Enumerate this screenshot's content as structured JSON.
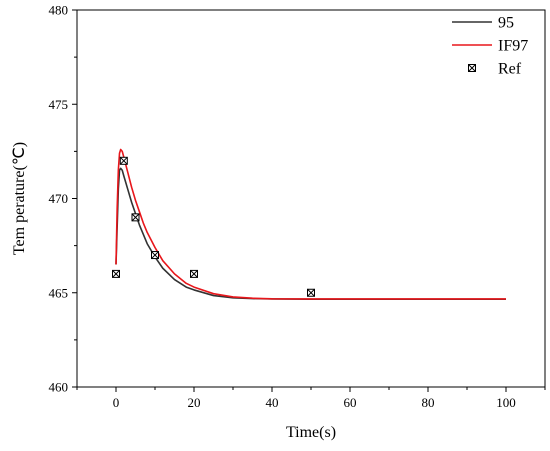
{
  "chart_data": {
    "type": "line",
    "title": "",
    "xlabel": "Time(s)",
    "ylabel": "Tem perature(℃)",
    "xlim": [
      -10,
      110
    ],
    "ylim": [
      460,
      480
    ],
    "xticks": [
      0,
      20,
      40,
      60,
      80,
      100
    ],
    "yticks": [
      460,
      465,
      470,
      475,
      480
    ],
    "legend_position": "top-right",
    "grid": false,
    "series": [
      {
        "name": "95",
        "type": "line",
        "color": "#333333",
        "x": [
          0,
          0.3,
          0.6,
          0.9,
          1.2,
          1.6,
          2,
          3,
          4,
          5,
          6,
          7,
          8,
          10,
          12,
          15,
          18,
          20,
          25,
          30,
          35,
          40,
          50,
          60,
          70,
          80,
          90,
          100
        ],
        "y": [
          466.5,
          468.5,
          470.5,
          471.5,
          471.6,
          471.5,
          471.2,
          470.5,
          469.8,
          469.2,
          468.6,
          468.1,
          467.6,
          466.9,
          466.3,
          465.7,
          465.3,
          465.15,
          464.85,
          464.73,
          464.69,
          464.67,
          464.66,
          464.66,
          464.66,
          464.66,
          464.66,
          464.66
        ]
      },
      {
        "name": "IF97",
        "type": "line",
        "color": "#e8161b",
        "x": [
          0,
          0.3,
          0.6,
          0.9,
          1.2,
          1.6,
          2,
          3,
          4,
          5,
          6,
          7,
          8,
          10,
          12,
          15,
          18,
          20,
          25,
          30,
          35,
          40,
          50,
          60,
          70,
          80,
          90,
          100
        ],
        "y": [
          466.5,
          469.5,
          471.5,
          472.4,
          472.6,
          472.5,
          472.2,
          471.4,
          470.6,
          469.9,
          469.3,
          468.7,
          468.2,
          467.4,
          466.7,
          466,
          465.5,
          465.3,
          464.95,
          464.78,
          464.71,
          464.68,
          464.67,
          464.67,
          464.67,
          464.67,
          464.67,
          464.67
        ]
      },
      {
        "name": "Ref",
        "type": "scatter",
        "color": "#000000",
        "x": [
          0,
          2,
          5,
          10,
          20,
          50
        ],
        "y": [
          466,
          472,
          469,
          467,
          466,
          465
        ]
      }
    ]
  }
}
